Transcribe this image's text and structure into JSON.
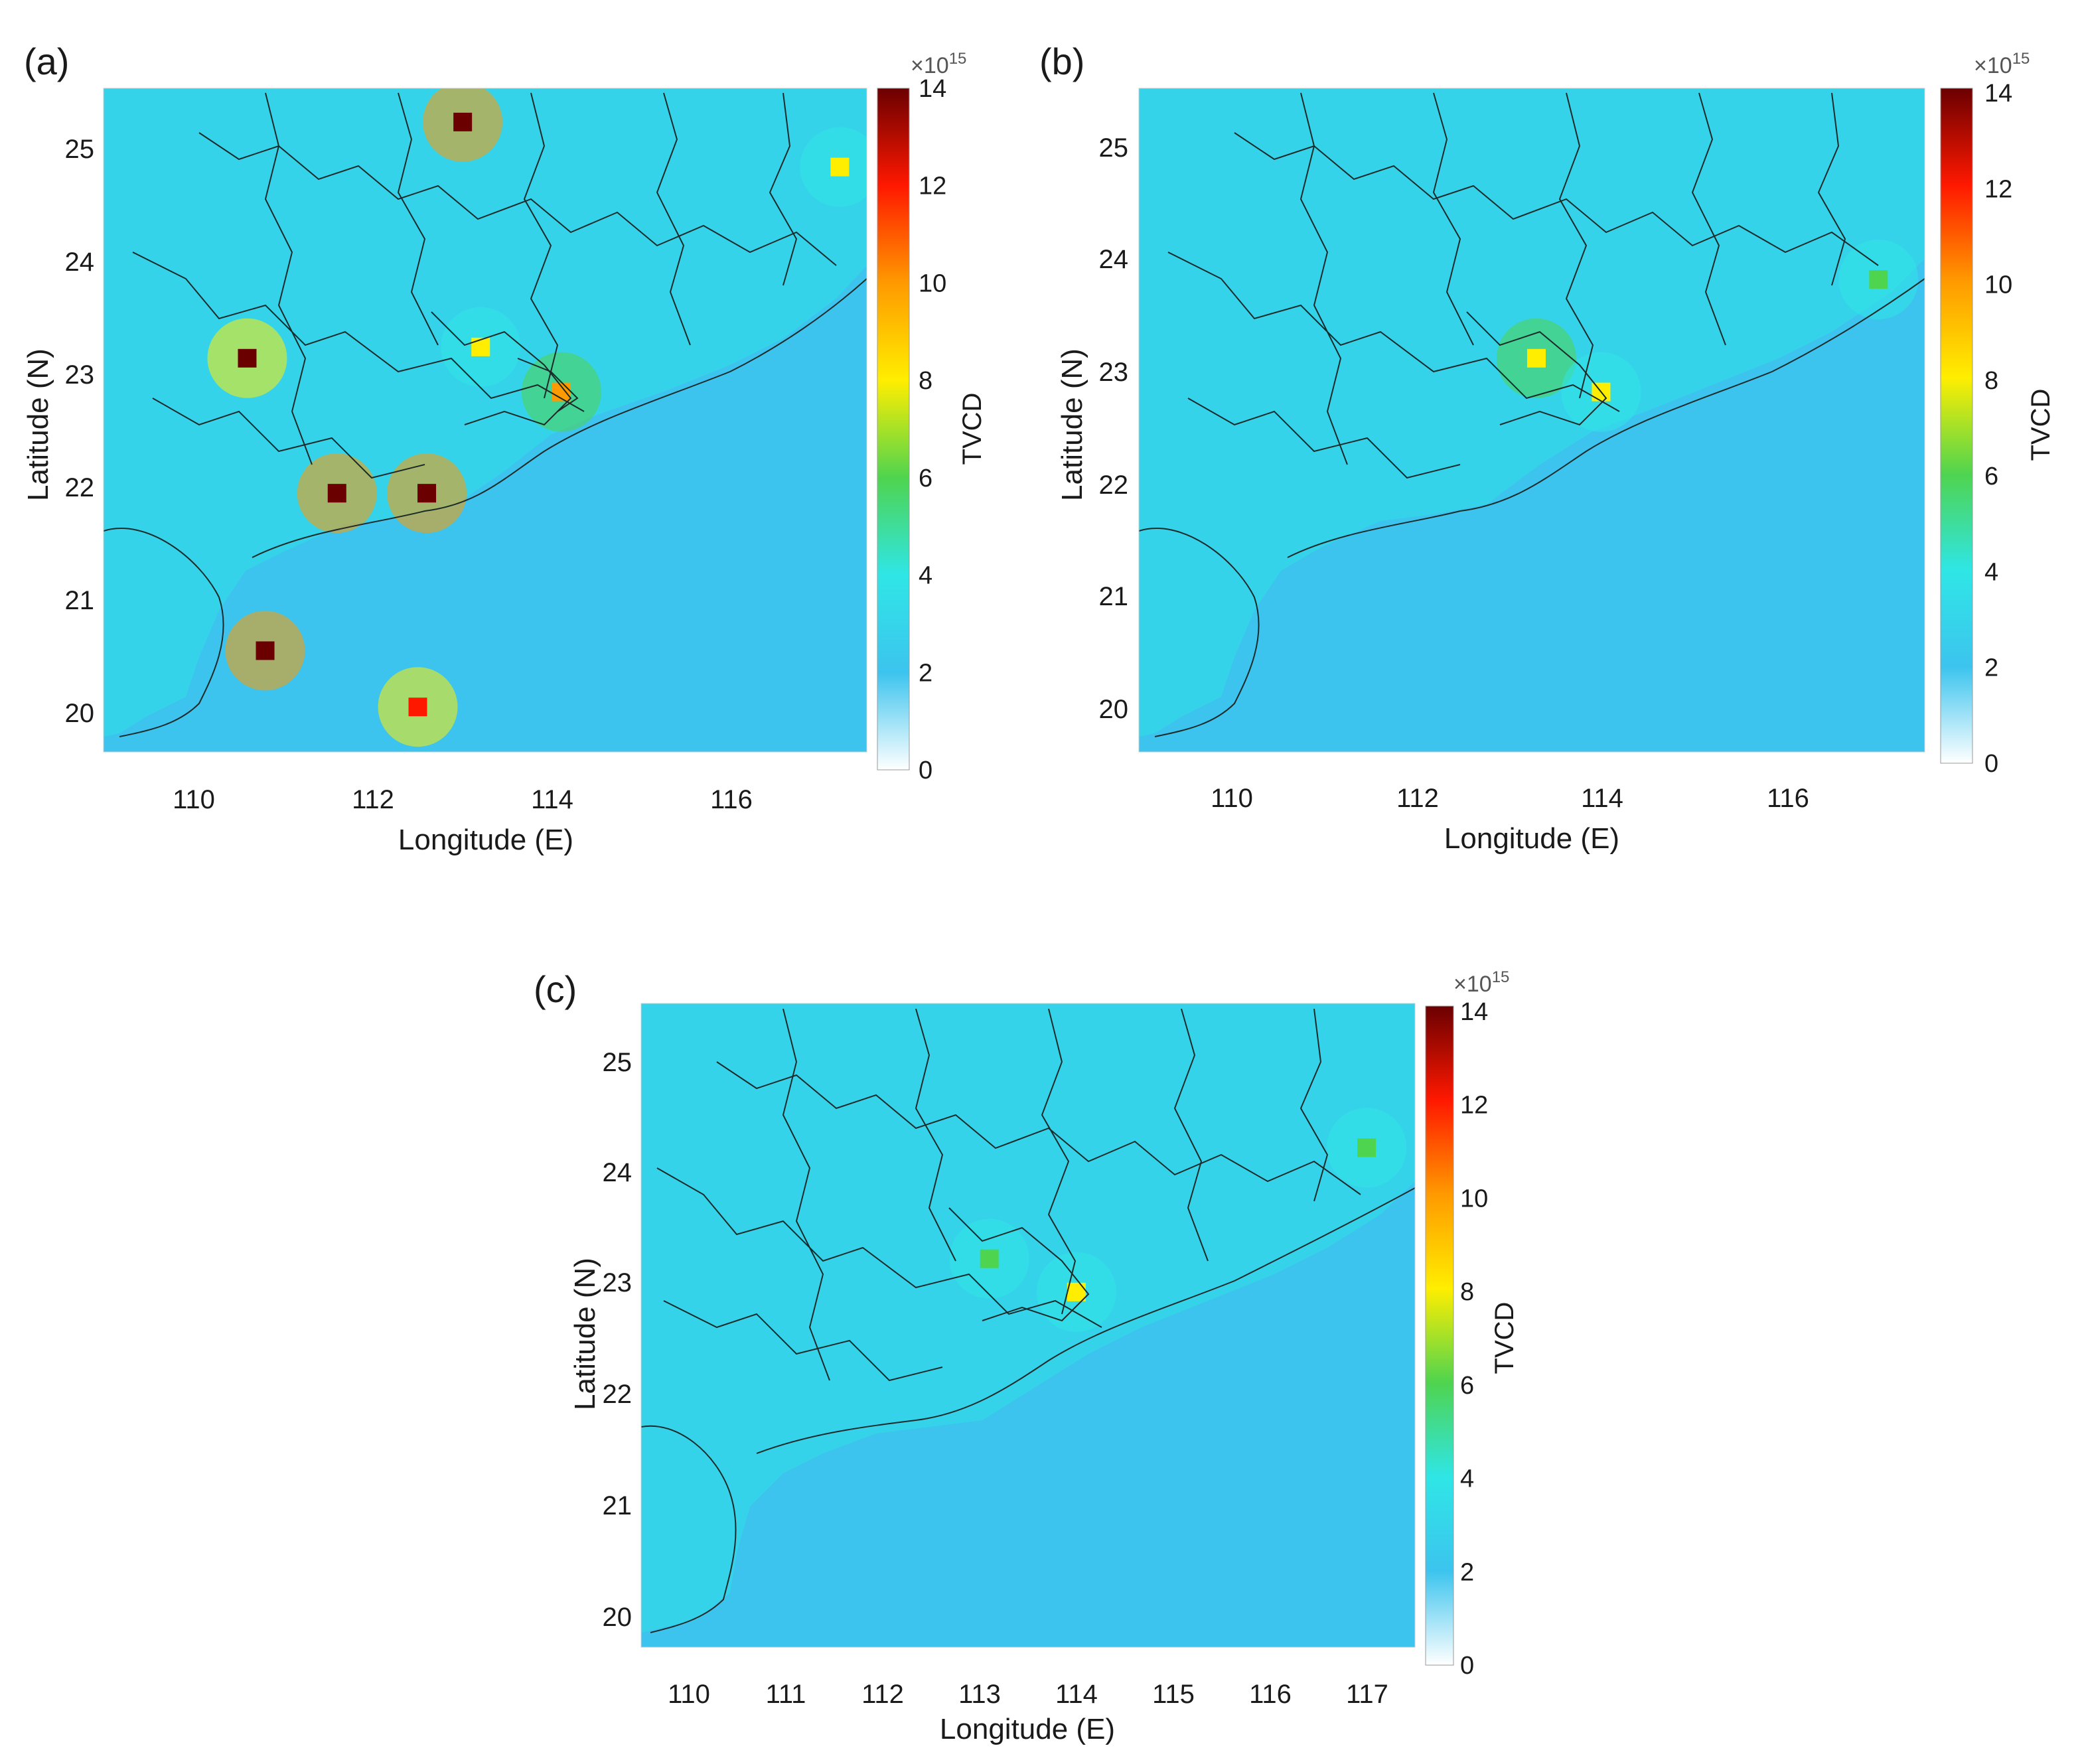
{
  "colorbar": {
    "title": "TVCD",
    "multiplier": "×10",
    "exponent": "15",
    "ticks": [
      "0",
      "2",
      "4",
      "6",
      "8",
      "10",
      "12",
      "14"
    ],
    "stops": [
      "#ffffff",
      "#3cc4ee",
      "#2fe6e6",
      "#4fd44f",
      "#ffee00",
      "#ff9a00",
      "#ff1800",
      "#6b0000"
    ]
  },
  "colors": {
    "ocean": "#3cc4ee",
    "land_low": "#31d7ea",
    "border": "#1c2a2a"
  },
  "chart_data": [
    {
      "type": "heatmap",
      "panel_label": "(a)",
      "xlabel": "Longitude (E)",
      "ylabel": "Latitude (N)",
      "x_ticks": [
        "110",
        "112",
        "114",
        "116"
      ],
      "y_ticks": [
        "20",
        "21",
        "22",
        "23",
        "24",
        "25"
      ],
      "xlim": [
        109,
        117.5
      ],
      "ylim": [
        19.6,
        25.5
      ],
      "value_range": [
        0,
        14
      ],
      "hotspots": [
        {
          "lon": 113.2,
          "lat": 23.2,
          "value": 6.5
        },
        {
          "lon": 114.1,
          "lat": 22.8,
          "value": 8
        },
        {
          "lon": 110.6,
          "lat": 23.1,
          "value": 13
        },
        {
          "lon": 111.6,
          "lat": 21.9,
          "value": 14
        },
        {
          "lon": 112.6,
          "lat": 21.9,
          "value": 14
        },
        {
          "lon": 110.8,
          "lat": 20.5,
          "value": 14
        },
        {
          "lon": 112.5,
          "lat": 20.0,
          "value": 10
        },
        {
          "lon": 113.0,
          "lat": 25.2,
          "value": 14
        },
        {
          "lon": 117.2,
          "lat": 24.8,
          "value": 6
        }
      ]
    },
    {
      "type": "heatmap",
      "panel_label": "(b)",
      "xlabel": "Longitude (E)",
      "ylabel": "Latitude (N)",
      "x_ticks": [
        "110",
        "112",
        "114",
        "116"
      ],
      "y_ticks": [
        "20",
        "21",
        "22",
        "23",
        "24",
        "25"
      ],
      "xlim": [
        109,
        117.5
      ],
      "ylim": [
        19.6,
        25.5
      ],
      "value_range": [
        0,
        14
      ],
      "hotspots": [
        {
          "lon": 113.3,
          "lat": 23.1,
          "value": 7
        },
        {
          "lon": 114.0,
          "lat": 22.8,
          "value": 6.5
        },
        {
          "lon": 117.0,
          "lat": 23.8,
          "value": 4
        }
      ]
    },
    {
      "type": "heatmap",
      "panel_label": "(c)",
      "xlabel": "Longitude (E)",
      "ylabel": "Latitude (N)",
      "x_ticks": [
        "110",
        "111",
        "112",
        "113",
        "114",
        "115",
        "116",
        "117"
      ],
      "y_ticks": [
        "20",
        "21",
        "22",
        "23",
        "24",
        "25"
      ],
      "xlim": [
        109.5,
        117.5
      ],
      "ylim": [
        19.7,
        25.5
      ],
      "value_range": [
        0,
        14
      ],
      "hotspots": [
        {
          "lon": 113.1,
          "lat": 23.2,
          "value": 5
        },
        {
          "lon": 114.0,
          "lat": 22.9,
          "value": 6.5
        },
        {
          "lon": 117.0,
          "lat": 24.2,
          "value": 4
        }
      ]
    }
  ]
}
